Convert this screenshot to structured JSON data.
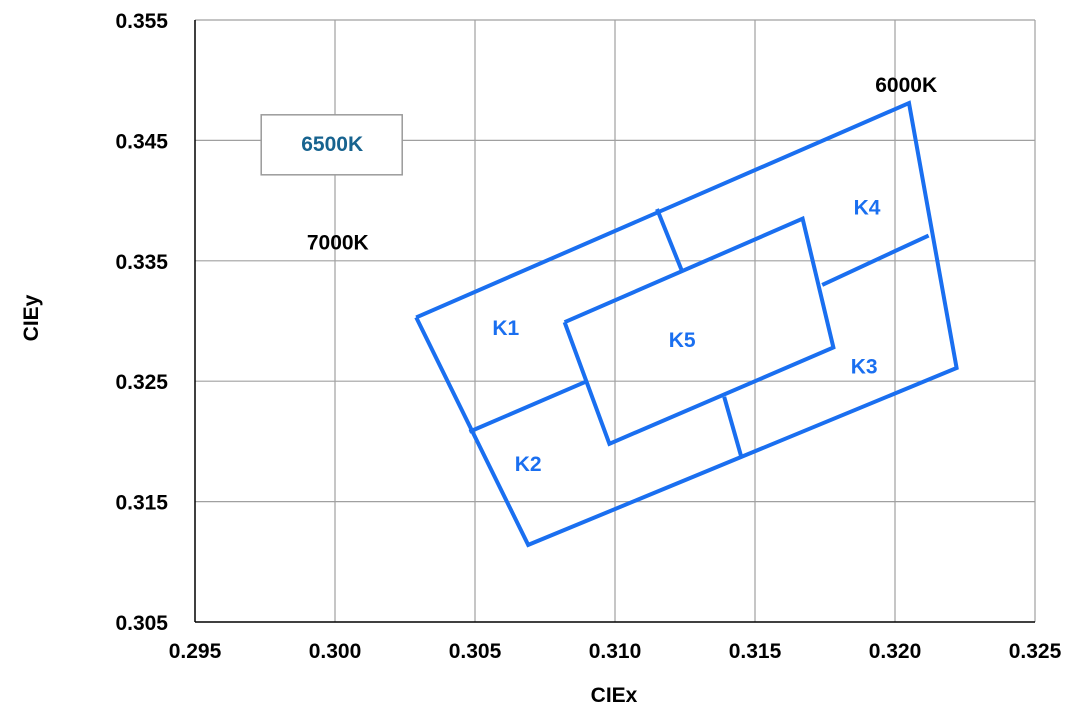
{
  "chart_data": {
    "type": "scatter",
    "xlabel": "CIEx",
    "ylabel": "CIEy",
    "xlim": [
      0.295,
      0.325
    ],
    "ylim": [
      0.305,
      0.355
    ],
    "xticks": [
      "0.295",
      "0.300",
      "0.305",
      "0.310",
      "0.315",
      "0.320",
      "0.325"
    ],
    "yticks": [
      "0.305",
      "0.315",
      "0.325",
      "0.335",
      "0.345",
      "0.355"
    ],
    "grid": true,
    "colors": {
      "series": "#1a6ff0",
      "boxed_label": "#17638f",
      "axis": "#000000",
      "grid": "#a0a0a0"
    },
    "outer_box": [
      [
        0.3029,
        0.3303
      ],
      [
        0.3205,
        0.3481
      ],
      [
        0.3222,
        0.3261
      ],
      [
        0.3069,
        0.3114
      ],
      [
        0.3029,
        0.3303
      ]
    ],
    "inner_box": [
      [
        0.3082,
        0.3299
      ],
      [
        0.3167,
        0.3385
      ],
      [
        0.3178,
        0.3278
      ],
      [
        0.3098,
        0.3198
      ],
      [
        0.3082,
        0.3299
      ]
    ],
    "dividers": [
      [
        [
          0.3115,
          0.3393
        ],
        [
          0.3124,
          0.3341
        ]
      ],
      [
        [
          0.3212,
          0.3371
        ],
        [
          0.3174,
          0.333
        ]
      ],
      [
        [
          0.3145,
          0.3188
        ],
        [
          0.3139,
          0.3237
        ]
      ],
      [
        [
          0.3048,
          0.3208
        ],
        [
          0.309,
          0.325
        ]
      ]
    ],
    "annotations": [
      {
        "text": "6500K",
        "x": 0.2999,
        "y": 0.3448,
        "color": "#17638f",
        "boxed": true
      },
      {
        "text": "7000K",
        "x": 0.3001,
        "y": 0.3366,
        "color": "#000000",
        "boxed": false
      },
      {
        "text": "6000K",
        "x": 0.3204,
        "y": 0.3497,
        "color": "#000000",
        "boxed": false
      },
      {
        "text": "K1",
        "x": 0.3061,
        "y": 0.3295,
        "color": "#1a6ff0",
        "boxed": false
      },
      {
        "text": "K2",
        "x": 0.3069,
        "y": 0.3182,
        "color": "#1a6ff0",
        "boxed": false
      },
      {
        "text": "K3",
        "x": 0.3189,
        "y": 0.3263,
        "color": "#1a6ff0",
        "boxed": false
      },
      {
        "text": "K4",
        "x": 0.319,
        "y": 0.3395,
        "color": "#1a6ff0",
        "boxed": false
      },
      {
        "text": "K5",
        "x": 0.3124,
        "y": 0.3285,
        "color": "#1a6ff0",
        "boxed": false
      }
    ]
  }
}
